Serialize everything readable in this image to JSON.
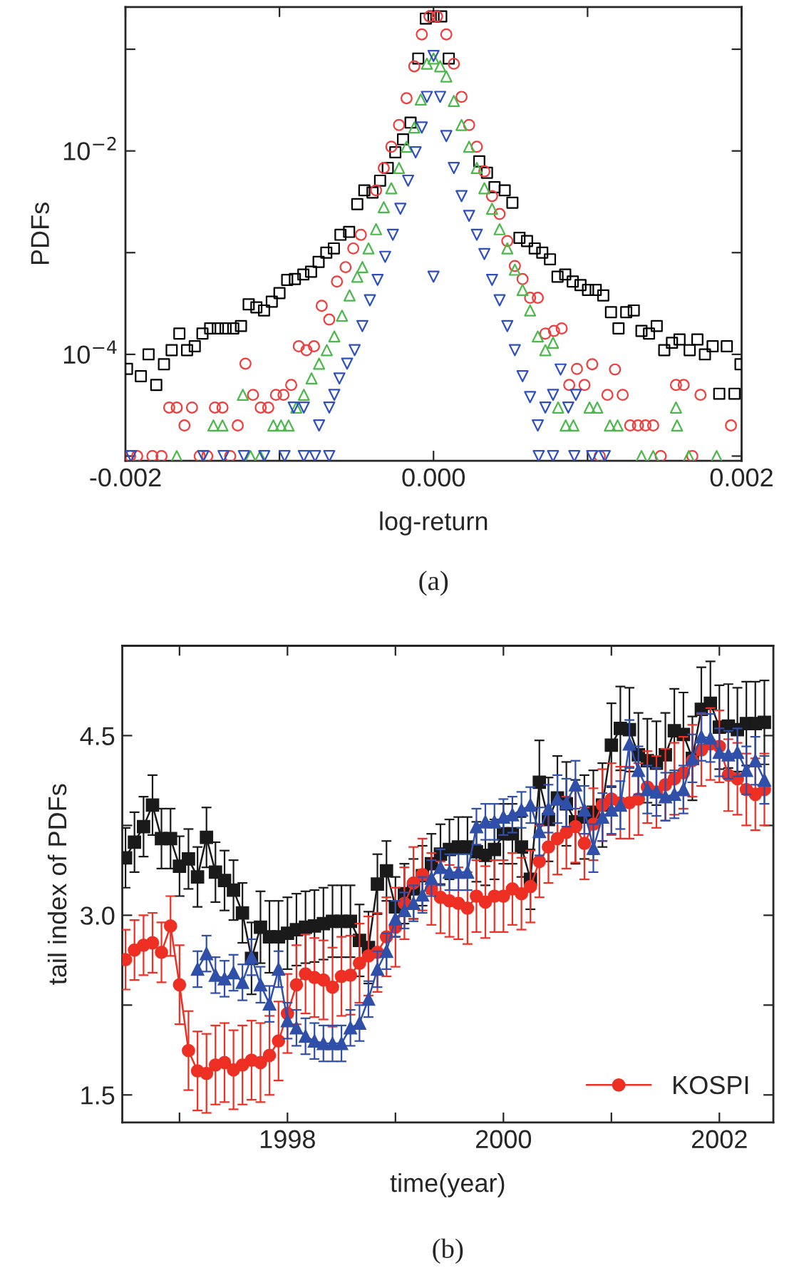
{
  "chart_data": [
    {
      "type": "scatter",
      "xlabel": "log-return",
      "ylabel": "PDFs",
      "log": "y",
      "xlim": [
        -0.002,
        0.002
      ],
      "ylim": [
        9e-06,
        0.26
      ],
      "xticks": [
        {
          "value": -0.002,
          "label": "-0.002"
        },
        {
          "value": -0.001,
          "label": null
        },
        {
          "value": 0.0,
          "label": "0.000"
        },
        {
          "value": 0.001,
          "label": null
        },
        {
          "value": 0.002,
          "label": "0.002"
        }
      ],
      "yticks": [
        {
          "value": 1e-05,
          "label": null
        },
        {
          "value": 0.0001,
          "label": "10$^{−4}$"
        },
        {
          "value": 0.001,
          "label": null
        },
        {
          "value": 0.01,
          "label": "10$^{−2}$"
        },
        {
          "value": 0.1,
          "label": null
        }
      ],
      "annotations": [
        "(a)"
      ],
      "series": [
        {
          "color": "#000000",
          "marker": "square",
          "x": [
            -0.00199,
            -0.0019,
            -0.00185,
            -0.0018,
            -0.00175,
            -0.0017,
            -0.00165,
            -0.0016,
            -0.00155,
            -0.0015,
            -0.00145,
            -0.0014,
            -0.00135,
            -0.0013,
            -0.00125,
            -0.0012,
            -0.00115,
            -0.0011,
            -0.00105,
            -0.001,
            -0.00095,
            -0.0009,
            -0.000845,
            -0.000795,
            -0.000746,
            -0.000696,
            -0.000647,
            -0.000604,
            -0.000548,
            -0.000495,
            -0.000449,
            -0.000396,
            -0.000347,
            -0.000297,
            -0.000248,
            -0.000198,
            -0.000149,
            -9.9e-05,
            -5e-05,
            0.0,
            5e-05,
            9.9e-05,
            0.000297,
            0.000347,
            0.000396,
            0.000462,
            0.000512,
            0.000558,
            0.000607,
            0.000657,
            0.000706,
            0.000756,
            0.000805,
            0.000855,
            0.000904,
            0.000954,
            0.001003,
            0.001053,
            0.001102,
            0.001152,
            0.001201,
            0.001251,
            0.0013,
            0.00135,
            0.001399,
            0.001449,
            0.001498,
            0.001548,
            0.001597,
            0.001663,
            0.001713,
            0.001762,
            0.001812,
            0.001855,
            0.001904,
            0.001954,
            0.001993
          ],
          "values": [
            7.2e-05,
            6.1e-05,
            0.0001,
            5e-05,
            8e-05,
            0.00011,
            0.00016,
            0.00011,
            0.00012,
            0.00016,
            0.00018,
            0.00018,
            0.00018,
            0.00018,
            0.00019,
            0.00031,
            0.00029,
            0.00027,
            0.00033,
            0.0004,
            0.00054,
            0.00055,
            0.00061,
            0.00065,
            0.00081,
            0.001,
            0.0011,
            0.0015,
            0.0016,
            0.003,
            0.0041,
            0.0039,
            0.0051,
            0.0068,
            0.0097,
            0.013,
            0.019,
            0.081,
            0.2,
            0.21,
            0.21,
            0.081,
            0.0079,
            0.0061,
            0.0044,
            0.0041,
            0.0031,
            0.0014,
            0.0013,
            0.0011,
            0.001,
            0.00086,
            0.00058,
            0.00061,
            0.00052,
            0.00048,
            0.00043,
            0.00043,
            0.00038,
            0.00026,
            0.00018,
            0.00026,
            0.00027,
            0.00017,
            0.00016,
            0.00019,
            0.00011,
            0.00013,
            0.00014,
            0.00011,
            0.00014,
            0.0001,
            0.00012,
            4.1e-05,
            0.00012,
            4.1e-05,
            8e-05
          ]
        },
        {
          "color": "#f03c3c",
          "marker": "circle",
          "x": [
            -0.00197,
            -0.001924,
            -0.001825,
            -0.001766,
            -0.001716,
            -0.001667,
            -0.001617,
            -0.001568,
            -0.001518,
            -0.001469,
            -0.001419,
            -0.00137,
            -0.00132,
            -0.001271,
            -0.001221,
            -0.001172,
            -0.001122,
            -0.001073,
            -0.001023,
            -0.000974,
            -0.000924,
            -0.000875,
            -0.000825,
            -0.000776,
            -0.000726,
            -0.000677,
            -0.000627,
            -0.000571,
            -0.000521,
            -0.000472,
            -0.000373,
            -0.000323,
            -0.000274,
            -0.000224,
            -0.000175,
            -0.000125,
            -7.6e-05,
            -2.6e-05,
            2.3e-05,
            8.3e-05,
            0.000132,
            0.000182,
            0.000231,
            0.000281,
            0.00033,
            0.00038,
            0.000429,
            0.000479,
            0.000528,
            0.000578,
            0.000627,
            0.000677,
            0.000726,
            0.000782,
            0.000832,
            0.000881,
            0.000931,
            0.00098,
            0.00103,
            0.001079,
            0.001129,
            0.001178,
            0.001228,
            0.001277,
            0.001327,
            0.001376,
            0.001426,
            0.001475,
            0.001574,
            0.001624,
            0.00168,
            0.001733,
            0.001931
          ],
          "values": [
            1e-05,
            1e-05,
            1e-05,
            1e-05,
            3e-05,
            3e-05,
            2e-05,
            3e-05,
            1e-05,
            1e-05,
            3e-05,
            3e-05,
            1e-05,
            2e-05,
            8.1e-05,
            4e-05,
            3e-05,
            3e-05,
            4e-05,
            4e-05,
            5e-05,
            0.00012,
            0.00011,
            0.00012,
            0.0003,
            0.00022,
            0.00052,
            0.00072,
            0.0011,
            0.0015,
            0.0041,
            0.0068,
            0.011,
            0.018,
            0.033,
            0.068,
            0.14,
            0.21,
            0.21,
            0.14,
            0.072,
            0.034,
            0.018,
            0.011,
            0.0063,
            0.0036,
            0.0024,
            0.0013,
            0.00074,
            0.00055,
            0.00036,
            0.00036,
            0.00016,
            0.00017,
            0.00018,
            5e-05,
            7.2e-05,
            5e-05,
            8e-05,
            1e-05,
            4e-05,
            7.1e-05,
            4e-05,
            2e-05,
            2e-05,
            2e-05,
            2e-05,
            1e-05,
            5e-05,
            5e-05,
            1e-05,
            4e-05,
            2e-05
          ]
        },
        {
          "color": "#4cb84c",
          "marker": "triangle",
          "x": [
            -0.001667,
            -0.001429,
            -0.00137,
            -0.001238,
            -0.001188,
            -0.001125,
            -0.00104,
            -0.00099,
            -0.000941,
            -0.000891,
            -0.000842,
            -0.000792,
            -0.000743,
            -0.000693,
            -0.000644,
            -0.000594,
            -0.000545,
            -0.000495,
            -0.000462,
            -0.000422,
            -0.000373,
            -0.000323,
            -0.000274,
            -0.000224,
            -0.000175,
            -0.000125,
            -8.3e-05,
            -4.3e-05,
            0.0,
            4.3e-05,
            8.3e-05,
            0.000132,
            0.000182,
            0.000231,
            0.000281,
            0.00033,
            0.00038,
            0.000429,
            0.000479,
            0.000528,
            0.000578,
            0.000627,
            0.000677,
            0.000726,
            0.000776,
            0.000809,
            0.000858,
            0.000908,
            0.001013,
            0.001063,
            0.001145,
            0.001195,
            0.00135,
            0.001426,
            0.001574,
            0.001581,
            0.001657,
            0.001838
          ],
          "values": [
            1e-05,
            2e-05,
            2e-05,
            4e-05,
            1e-05,
            1e-05,
            2e-05,
            2e-05,
            2e-05,
            3e-05,
            4e-05,
            5.8e-05,
            8.1e-05,
            0.00011,
            0.00015,
            0.00024,
            0.00038,
            0.00058,
            0.00072,
            0.0011,
            0.0017,
            0.0028,
            0.0043,
            0.0068,
            0.011,
            0.017,
            0.032,
            0.072,
            0.081,
            0.068,
            0.054,
            0.031,
            0.018,
            0.011,
            0.0068,
            0.0043,
            0.0027,
            0.0017,
            0.0011,
            0.00068,
            0.00043,
            0.00027,
            0.00015,
            0.00011,
            0.00013,
            3e-05,
            2e-05,
            2e-05,
            3e-05,
            3e-05,
            2e-05,
            2e-05,
            1e-05,
            1e-05,
            3e-05,
            2e-05,
            1e-05,
            1e-05
          ]
        },
        {
          "color": "#2f4fbf",
          "marker": "triangle_down",
          "x": [
            -0.001964,
            -0.001495,
            -0.001363,
            -0.001231,
            -0.001099,
            -0.000967,
            -0.000842,
            -0.000769,
            -0.000677,
            -0.000908,
            -0.000842,
            -0.000743,
            -0.000677,
            -0.000644,
            -0.000611,
            -0.000561,
            -0.000512,
            -0.000462,
            -0.000413,
            -0.000363,
            -0.000314,
            -0.000264,
            -0.000215,
            -0.000165,
            -0.000116,
            -7.6e-05,
            -4.3e-05,
            0.0,
            0.0,
            4.3e-05,
            8.3e-05,
            0.000132,
            0.000182,
            0.000231,
            0.000281,
            0.00033,
            0.00038,
            0.000429,
            0.000479,
            0.000528,
            0.000578,
            0.000627,
            0.000677,
            0.000726,
            0.000776,
            0.000825,
            0.000875,
            0.000924,
            0.000683,
            0.000776,
            0.000914,
            0.00103,
            0.001112
          ],
          "values": [
            1e-05,
            1e-05,
            1e-05,
            1e-05,
            1e-05,
            1e-05,
            1e-05,
            1e-05,
            1e-05,
            3e-05,
            3e-05,
            2e-05,
            3e-05,
            4e-05,
            5.8e-05,
            8.1e-05,
            0.00011,
            0.00019,
            0.00034,
            0.00054,
            0.00091,
            0.0015,
            0.0027,
            0.0051,
            0.0097,
            0.017,
            0.034,
            0.086,
            0.00058,
            0.034,
            0.014,
            0.0068,
            0.0036,
            0.0023,
            0.0015,
            0.00097,
            0.00054,
            0.00034,
            0.00019,
            0.00011,
            6.1e-05,
            3.8e-05,
            2e-05,
            3e-05,
            4e-05,
            7.1e-05,
            3e-05,
            4e-05,
            1e-05,
            1e-05,
            1e-05,
            1e-05,
            1e-05
          ]
        }
      ]
    },
    {
      "type": "line",
      "xlabel": "time(year)",
      "ylabel": "tail index of PDFs",
      "xlim": [
        1996.47,
        2002.5
      ],
      "ylim": [
        1.27,
        5.25
      ],
      "xticks": [
        {
          "value": 1997,
          "label": null
        },
        1998,
        {
          "value": 1999,
          "label": null
        },
        2000,
        {
          "value": 2001,
          "label": null
        },
        2002
      ],
      "yticks": [
        1.5,
        {
          "value": 2.25,
          "label": null
        },
        {
          "value": 3,
          "label": "3.0"
        },
        {
          "value": 3.75,
          "label": null
        },
        4.5
      ],
      "line_style": "solid",
      "legend": "bottom right",
      "annotations": [
        "(b)"
      ],
      "x": [
        1996.5,
        1996.583,
        1996.667,
        1996.75,
        1996.833,
        1996.917,
        1997.0,
        1997.083,
        1997.167,
        1997.25,
        1997.333,
        1997.417,
        1997.5,
        1997.583,
        1997.667,
        1997.75,
        1997.833,
        1997.917,
        1998.0,
        1998.083,
        1998.167,
        1998.25,
        1998.333,
        1998.417,
        1998.5,
        1998.583,
        1998.667,
        1998.75,
        1998.833,
        1998.917,
        1999.0,
        1999.083,
        1999.167,
        1999.25,
        1999.333,
        1999.417,
        1999.5,
        1999.583,
        1999.667,
        1999.75,
        1999.833,
        1999.917,
        2000.0,
        2000.083,
        2000.167,
        2000.25,
        2000.333,
        2000.417,
        2000.5,
        2000.583,
        2000.667,
        2000.75,
        2000.833,
        2000.917,
        2001.0,
        2001.083,
        2001.167,
        2001.25,
        2001.333,
        2001.417,
        2001.5,
        2001.583,
        2001.667,
        2001.75,
        2001.833,
        2001.917,
        2002.0,
        2002.083,
        2002.167,
        2002.25,
        2002.333,
        2002.417
      ],
      "series": [
        {
          "color": "#1a1a1a",
          "marker": "square",
          "values": [
            3.48,
            3.61,
            3.74,
            3.92,
            3.64,
            3.64,
            3.41,
            3.47,
            3.32,
            3.65,
            3.36,
            3.29,
            3.21,
            3.02,
            2.64,
            2.9,
            2.82,
            2.82,
            2.85,
            2.88,
            2.9,
            2.91,
            2.93,
            2.95,
            2.95,
            2.95,
            2.79,
            2.73,
            3.26,
            3.37,
            3.07,
            3.18,
            3.22,
            3.33,
            3.43,
            3.51,
            3.55,
            3.57,
            3.57,
            3.53,
            3.5,
            3.55,
            3.68,
            3.68,
            3.57,
            3.3,
            4.11,
            3.8,
            3.98,
            3.93,
            3.78,
            3.82,
            3.86,
            3.92,
            4.42,
            4.56,
            4.55,
            4.34,
            4.29,
            4.27,
            4.34,
            4.54,
            4.51,
            4.31,
            4.72,
            4.77,
            4.57,
            4.58,
            4.55,
            4.6,
            4.6,
            4.61
          ],
          "errors": [
            0.25,
            0.25,
            0.25,
            0.25,
            0.25,
            0.25,
            0.25,
            0.25,
            0.25,
            0.25,
            0.25,
            0.25,
            0.25,
            0.25,
            0.3,
            0.3,
            0.3,
            0.3,
            0.3,
            0.3,
            0.3,
            0.3,
            0.3,
            0.3,
            0.3,
            0.3,
            0.3,
            0.3,
            0.25,
            0.25,
            0.25,
            0.25,
            0.25,
            0.25,
            0.25,
            0.25,
            0.25,
            0.25,
            0.25,
            0.25,
            0.25,
            0.25,
            0.25,
            0.25,
            0.25,
            0.25,
            0.35,
            0.35,
            0.35,
            0.35,
            0.35,
            0.35,
            0.35,
            0.35,
            0.35,
            0.35,
            0.35,
            0.35,
            0.35,
            0.35,
            0.35,
            0.35,
            0.35,
            0.35,
            0.35,
            0.35,
            0.35,
            0.35,
            0.35,
            0.35,
            0.35,
            0.35
          ]
        },
        {
          "name": "KOSPI",
          "color": "#ee2f24",
          "marker": "circle",
          "values": [
            2.63,
            2.71,
            2.75,
            2.77,
            2.69,
            2.91,
            2.42,
            1.87,
            1.7,
            1.68,
            1.75,
            1.77,
            1.71,
            1.75,
            1.79,
            1.77,
            1.83,
            1.95,
            2.18,
            2.42,
            2.51,
            2.48,
            2.46,
            2.4,
            2.49,
            2.5,
            2.6,
            2.66,
            2.69,
            2.82,
            2.9,
            3.1,
            3.27,
            3.34,
            3.22,
            3.15,
            3.12,
            3.1,
            3.06,
            3.16,
            3.11,
            3.16,
            3.16,
            3.22,
            3.18,
            3.24,
            3.45,
            3.57,
            3.64,
            3.69,
            3.74,
            3.6,
            3.76,
            3.92,
            3.97,
            3.94,
            3.94,
            3.97,
            4.07,
            4.03,
            4.09,
            4.14,
            4.19,
            4.29,
            4.38,
            4.43,
            4.41,
            4.17,
            4.14,
            4.05,
            4.01,
            4.05
          ],
          "errors": [
            0.25,
            0.25,
            0.25,
            0.25,
            0.25,
            0.25,
            0.33,
            0.33,
            0.33,
            0.33,
            0.33,
            0.33,
            0.33,
            0.33,
            0.33,
            0.33,
            0.33,
            0.33,
            0.33,
            0.33,
            0.33,
            0.33,
            0.33,
            0.33,
            0.33,
            0.33,
            0.33,
            0.33,
            0.33,
            0.33,
            0.33,
            0.3,
            0.3,
            0.3,
            0.3,
            0.3,
            0.3,
            0.3,
            0.3,
            0.3,
            0.3,
            0.3,
            0.3,
            0.3,
            0.3,
            0.3,
            0.3,
            0.3,
            0.3,
            0.3,
            0.3,
            0.3,
            0.3,
            0.3,
            0.3,
            0.3,
            0.3,
            0.3,
            0.3,
            0.3,
            0.3,
            0.3,
            0.3,
            0.3,
            0.3,
            0.3,
            0.3,
            0.3,
            0.3,
            0.3,
            0.3,
            0.3
          ]
        },
        {
          "color": "#2f4fa8",
          "marker": "triangle",
          "values": [
            null,
            null,
            null,
            null,
            null,
            null,
            null,
            null,
            2.55,
            2.68,
            2.5,
            2.47,
            2.52,
            2.44,
            2.65,
            2.42,
            2.26,
            2.55,
            2.12,
            2.06,
            1.99,
            1.95,
            1.93,
            1.93,
            1.93,
            2.06,
            2.1,
            2.3,
            2.55,
            2.7,
            2.97,
            3.04,
            3.1,
            3.17,
            3.31,
            3.4,
            3.36,
            3.36,
            3.36,
            3.74,
            3.78,
            3.78,
            3.82,
            3.84,
            3.88,
            3.92,
            3.7,
            3.89,
            3.97,
            3.94,
            4.09,
            3.88,
            3.56,
            3.82,
            3.88,
            3.92,
            4.43,
            4.21,
            4.05,
            4.03,
            3.99,
            4.01,
            4.05,
            4.31,
            4.49,
            4.48,
            4.36,
            4.34,
            4.36,
            4.21,
            4.29,
            4.13
          ],
          "errors": [
            null,
            null,
            null,
            null,
            null,
            null,
            null,
            null,
            0.15,
            0.15,
            0.15,
            0.15,
            0.15,
            0.15,
            0.15,
            0.15,
            0.15,
            0.15,
            0.15,
            0.15,
            0.15,
            0.15,
            0.15,
            0.15,
            0.15,
            0.15,
            0.15,
            0.15,
            0.15,
            0.15,
            0.15,
            0.15,
            0.15,
            0.15,
            0.15,
            0.15,
            0.15,
            0.15,
            0.15,
            0.15,
            0.15,
            0.15,
            0.15,
            0.15,
            0.15,
            0.15,
            0.2,
            0.2,
            0.2,
            0.2,
            0.2,
            0.2,
            0.2,
            0.2,
            0.2,
            0.2,
            0.2,
            0.2,
            0.2,
            0.2,
            0.2,
            0.2,
            0.2,
            0.2,
            0.2,
            0.2,
            0.2,
            0.2,
            0.2,
            0.2,
            0.2,
            0.2
          ]
        }
      ]
    }
  ]
}
